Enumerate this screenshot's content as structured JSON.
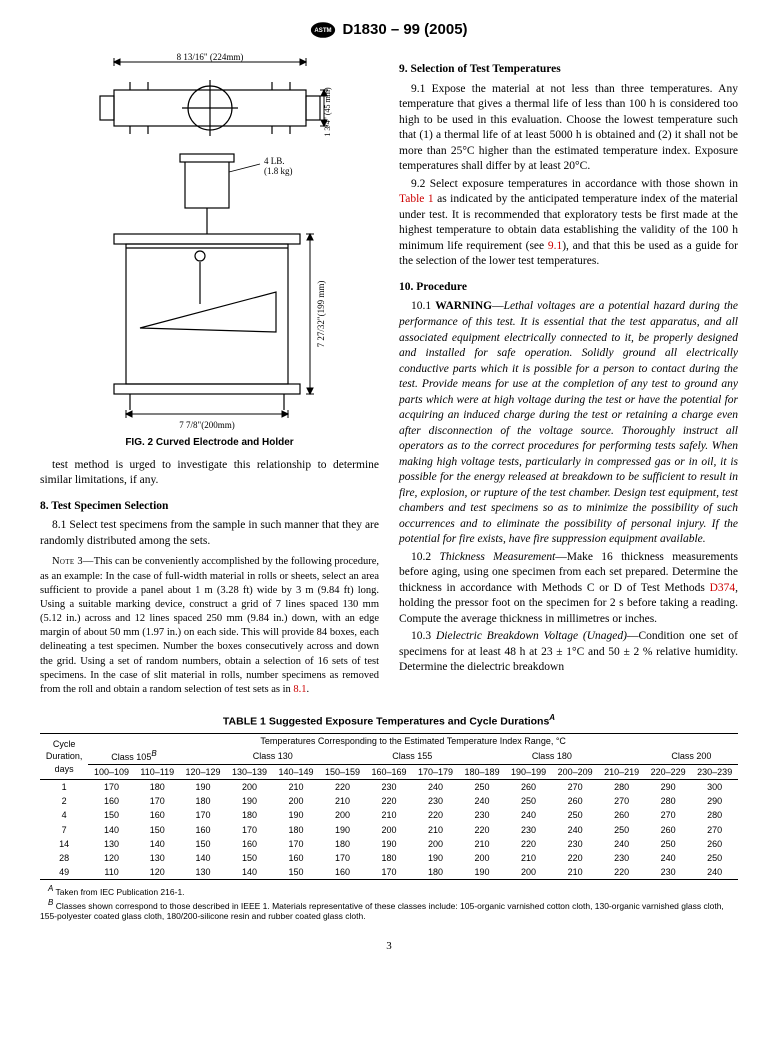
{
  "header": {
    "designation": "D1830 – 99 (2005)"
  },
  "figure": {
    "dim_top": "8 13/16\" (224mm)",
    "dim_right_upper": "1 3/4\" (45 mm)",
    "weight_label": "4 LB.",
    "weight_sub": "(1.8 kg)",
    "dim_height": "7 27/32\"(199 mm)",
    "dim_bottom": "7 7/8\"(200mm)",
    "caption": "FIG. 2 Curved Electrode and Holder"
  },
  "left_intro": "test method is urged to investigate this relationship to determine similar limitations, if any.",
  "sec8": {
    "head": "8.  Test Specimen Selection",
    "p81": "8.1 Select test specimens from the sample in such manner that they are randomly distributed among the sets."
  },
  "note3": {
    "label": "Note 3—",
    "body": "This can be conveniently accomplished by the following procedure, as an example: In the case of full-width material in rolls or sheets, select an area sufficient to provide a panel about 1 m (3.28 ft) wide by 3 m (9.84 ft) long. Using a suitable marking device, construct a grid of 7 lines spaced 130 mm (5.12 in.) across and 12 lines spaced 250 mm (9.84 in.) down, with an edge margin of about 50 mm (1.97 in.) on each side. This will provide 84 boxes, each delineating a test specimen. Number the boxes consecutively across and down the grid. Using a set of random numbers, obtain a selection of 16 sets of test specimens. In the case of slit material in rolls, number specimens as removed from the roll and obtain a random selection of test sets as in ",
    "ref": "8.1",
    "end": "."
  },
  "sec9": {
    "head": "9.  Selection of Test Temperatures",
    "p91": "9.1 Expose the material at not less than three temperatures. Any temperature that gives a thermal life of less than 100 h is considered too high to be used in this evaluation. Choose the lowest temperature such that (1) a thermal life of at least 5000 h is obtained and (2) it shall not be more than 25°C higher than the estimated temperature index. Exposure temperatures shall differ by at least 20°C.",
    "p92a": "9.2 Select exposure temperatures in accordance with those shown in ",
    "p92_ref": "Table 1",
    "p92b": " as indicated by the anticipated temperature index of the material under test. It is recommended that exploratory tests be first made at the highest temperature to obtain data establishing the validity of the 100 h minimum life requirement (see ",
    "p92_ref2": "9.1",
    "p92c": "), and that this be used as a guide for the selection of the lower test temperatures."
  },
  "sec10": {
    "head": "10.  Procedure",
    "p101_lbl": "10.1 ",
    "p101_warn": "WARNING",
    "p101_dash": "—",
    "p101_body": "Lethal voltages are a potential hazard during the performance of this test. It is essential that the test apparatus, and all associated equipment electrically connected to it, be properly designed and installed for safe operation. Solidly ground all electrically conductive parts which it is possible for a person to contact during the test. Provide means for use at the completion of any test to ground any parts which were at high voltage during the test or have the potential for acquiring an induced charge during the test or retaining a charge even after disconnection of the voltage source. Thoroughly instruct all operators as to the correct procedures for performing tests safely. When making high voltage tests, particularly in compressed gas or in oil, it is possible for the energy released at breakdown to be sufficient to result in fire, explosion, or rupture of the test chamber. Design test equipment, test chambers and test specimens so as to minimize the possibility of such occurrences and to eliminate the possibility of personal injury. If the potential for fire exists, have fire suppression equipment available.",
    "p102_lbl": "10.2 ",
    "p102_head": "Thickness Measurement",
    "p102a": "—Make 16 thickness measurements before aging, using one specimen from each set prepared. Determine the thickness in accordance with Methods C or D of Test Methods ",
    "p102_ref": "D374",
    "p102b": ", holding the pressor foot on the specimen for 2 s before taking a reading. Compute the average thickness in millimetres or inches.",
    "p103_lbl": "10.3 ",
    "p103_head": "Dielectric Breakdown Voltage (Unaged)",
    "p103a": "—Condition one set of specimens for at least 48 h at 23 ± 1°C and 50 ± 2 % relative humidity. Determine the dielectric breakdown"
  },
  "table": {
    "title": "TABLE 1  Suggested Exposure Temperatures and Cycle Durations",
    "title_sup": "A",
    "span_head": "Temperatures Corresponding to the Estimated Temperature Index Range, °C",
    "cycle_head1": "Cycle",
    "cycle_head2": "Duration,",
    "cycle_head3": "days",
    "classes": [
      "Class 105",
      "Class 130",
      "Class 155",
      "Class 180",
      "Class 200",
      "—"
    ],
    "class105_sup": "B",
    "ranges": [
      "100–109",
      "110–119",
      "120–129",
      "130–139",
      "140–149",
      "150–159",
      "160–169",
      "170–179",
      "180–189",
      "190–199",
      "200–209",
      "210–219",
      "220–229",
      "230–239"
    ],
    "rows": [
      {
        "d": "1",
        "v": [
          "170",
          "180",
          "190",
          "200",
          "210",
          "220",
          "230",
          "240",
          "250",
          "260",
          "270",
          "280",
          "290",
          "300"
        ]
      },
      {
        "d": "2",
        "v": [
          "160",
          "170",
          "180",
          "190",
          "200",
          "210",
          "220",
          "230",
          "240",
          "250",
          "260",
          "270",
          "280",
          "290"
        ]
      },
      {
        "d": "4",
        "v": [
          "150",
          "160",
          "170",
          "180",
          "190",
          "200",
          "210",
          "220",
          "230",
          "240",
          "250",
          "260",
          "270",
          "280"
        ]
      },
      {
        "d": "7",
        "v": [
          "140",
          "150",
          "160",
          "170",
          "180",
          "190",
          "200",
          "210",
          "220",
          "230",
          "240",
          "250",
          "260",
          "270"
        ]
      },
      {
        "d": "14",
        "v": [
          "130",
          "140",
          "150",
          "160",
          "170",
          "180",
          "190",
          "200",
          "210",
          "220",
          "230",
          "240",
          "250",
          "260"
        ]
      },
      {
        "d": "28",
        "v": [
          "120",
          "130",
          "140",
          "150",
          "160",
          "170",
          "180",
          "190",
          "200",
          "210",
          "220",
          "230",
          "240",
          "250"
        ]
      },
      {
        "d": "49",
        "v": [
          "110",
          "120",
          "130",
          "140",
          "150",
          "160",
          "170",
          "180",
          "190",
          "200",
          "210",
          "220",
          "230",
          "240"
        ]
      }
    ]
  },
  "footnotes": {
    "a": " Taken from IEC Publication 216-1.",
    "b": " Classes shown correspond to those described in IEEE 1. Materials representative of these classes include: 105-organic varnished cotton cloth, 130-organic varnished glass cloth, 155-polyester coated glass cloth, 180/200-silicone resin and rubber coated glass cloth."
  },
  "page_num": "3"
}
